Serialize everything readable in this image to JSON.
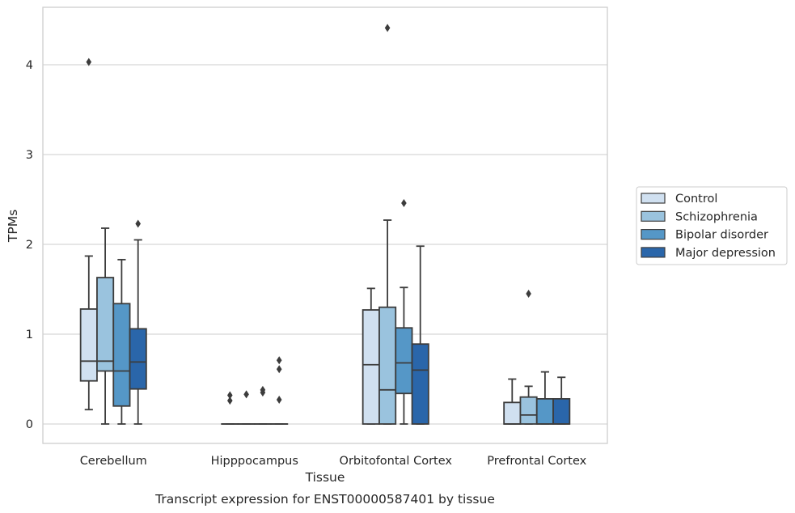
{
  "caption": "Transcript expression for ENST00000587401 by tissue",
  "chart_data": {
    "type": "box",
    "title": "",
    "xlabel": "Tissue",
    "ylabel": "TPMs",
    "ylim": [
      -0.22,
      4.65
    ],
    "yticks": [
      0,
      1,
      2,
      3,
      4
    ],
    "grid": "horizontal",
    "legend_placement": "right",
    "categories": [
      "Cerebellum",
      "Hipppocampus",
      "Orbitofontal Cortex",
      "Prefrontal Cortex"
    ],
    "series": [
      {
        "name": "Control",
        "color": "#d0e0f0",
        "boxes": [
          {
            "whislo": 0.16,
            "q1": 0.48,
            "med": 0.7,
            "q3": 1.28,
            "whishi": 1.87,
            "fliers": [
              4.03
            ]
          },
          {
            "whislo": 0.0,
            "q1": 0.0,
            "med": 0.0,
            "q3": 0.0,
            "whishi": 0.0,
            "fliers": [
              0.26,
              0.32
            ]
          },
          {
            "whislo": 0.0,
            "q1": 0.0,
            "med": 0.66,
            "q3": 1.27,
            "whishi": 1.51,
            "fliers": []
          },
          {
            "whislo": 0.0,
            "q1": 0.0,
            "med": 0.0,
            "q3": 0.24,
            "whishi": 0.5,
            "fliers": []
          }
        ]
      },
      {
        "name": "Schizophrenia",
        "color": "#9ac3de",
        "boxes": [
          {
            "whislo": 0.0,
            "q1": 0.59,
            "med": 0.7,
            "q3": 1.63,
            "whishi": 2.18,
            "fliers": []
          },
          {
            "whislo": 0.0,
            "q1": 0.0,
            "med": 0.0,
            "q3": 0.0,
            "whishi": 0.0,
            "fliers": [
              0.33
            ]
          },
          {
            "whislo": 0.0,
            "q1": 0.0,
            "med": 0.38,
            "q3": 1.3,
            "whishi": 2.27,
            "fliers": [
              4.41
            ]
          },
          {
            "whislo": 0.0,
            "q1": 0.0,
            "med": 0.1,
            "q3": 0.3,
            "whishi": 0.42,
            "fliers": [
              1.45
            ]
          }
        ]
      },
      {
        "name": "Bipolar disorder",
        "color": "#5597c7",
        "boxes": [
          {
            "whislo": 0.0,
            "q1": 0.2,
            "med": 0.59,
            "q3": 1.34,
            "whishi": 1.83,
            "fliers": []
          },
          {
            "whislo": 0.0,
            "q1": 0.0,
            "med": 0.0,
            "q3": 0.0,
            "whishi": 0.0,
            "fliers": [
              0.35,
              0.38
            ]
          },
          {
            "whislo": 0.0,
            "q1": 0.34,
            "med": 0.68,
            "q3": 1.07,
            "whishi": 1.52,
            "fliers": [
              2.46
            ]
          },
          {
            "whislo": 0.0,
            "q1": 0.0,
            "med": 0.0,
            "q3": 0.28,
            "whishi": 0.58,
            "fliers": []
          }
        ]
      },
      {
        "name": "Major depression",
        "color": "#2a66aa",
        "boxes": [
          {
            "whislo": 0.0,
            "q1": 0.39,
            "med": 0.69,
            "q3": 1.06,
            "whishi": 2.05,
            "fliers": [
              2.23
            ]
          },
          {
            "whislo": 0.0,
            "q1": 0.0,
            "med": 0.0,
            "q3": 0.0,
            "whishi": 0.0,
            "fliers": [
              0.27,
              0.61,
              0.71
            ]
          },
          {
            "whislo": 0.0,
            "q1": 0.0,
            "med": 0.6,
            "q3": 0.89,
            "whishi": 1.98,
            "fliers": []
          },
          {
            "whislo": 0.0,
            "q1": 0.0,
            "med": 0.0,
            "q3": 0.28,
            "whishi": 0.52,
            "fliers": []
          }
        ]
      }
    ]
  }
}
